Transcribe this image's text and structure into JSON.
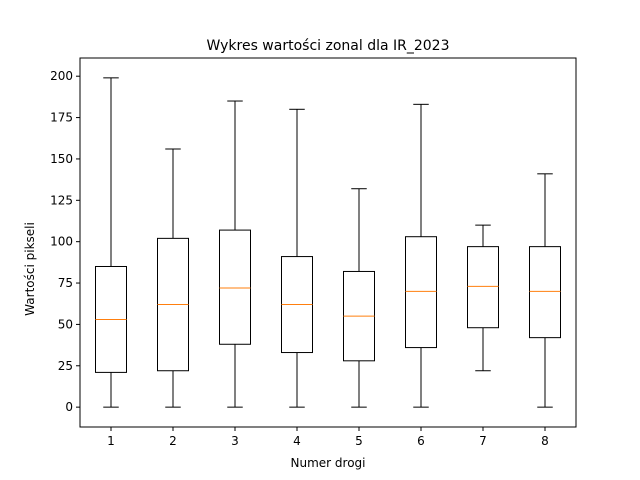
{
  "chart_data": {
    "type": "boxplot",
    "title": "Wykres wartości zonal dla IR_2023",
    "xlabel": "Numer drogi",
    "ylabel": "Wartości pikseli",
    "ylim": [
      -12,
      211
    ],
    "yticks": [
      0,
      25,
      50,
      75,
      100,
      125,
      150,
      175,
      200
    ],
    "grid": false,
    "categories": [
      "1",
      "2",
      "3",
      "4",
      "5",
      "6",
      "7",
      "8"
    ],
    "boxes": [
      {
        "category": "1",
        "whisker_low": 0,
        "q1": 21,
        "median": 53,
        "q3": 85,
        "whisker_high": 199
      },
      {
        "category": "2",
        "whisker_low": 0,
        "q1": 22,
        "median": 62,
        "q3": 102,
        "whisker_high": 156
      },
      {
        "category": "3",
        "whisker_low": 0,
        "q1": 38,
        "median": 72,
        "q3": 107,
        "whisker_high": 185
      },
      {
        "category": "4",
        "whisker_low": 0,
        "q1": 33,
        "median": 62,
        "q3": 91,
        "whisker_high": 180
      },
      {
        "category": "5",
        "whisker_low": 0,
        "q1": 28,
        "median": 55,
        "q3": 82,
        "whisker_high": 132
      },
      {
        "category": "6",
        "whisker_low": 0,
        "q1": 36,
        "median": 70,
        "q3": 103,
        "whisker_high": 183
      },
      {
        "category": "7",
        "whisker_low": 22,
        "q1": 48,
        "median": 73,
        "q3": 97,
        "whisker_high": 110
      },
      {
        "category": "8",
        "whisker_low": 0,
        "q1": 42,
        "median": 70,
        "q3": 97,
        "whisker_high": 141
      }
    ],
    "colors": {
      "box": "#000000",
      "median": "#ff7f0e",
      "axes": "#000000",
      "background": "#ffffff"
    }
  }
}
